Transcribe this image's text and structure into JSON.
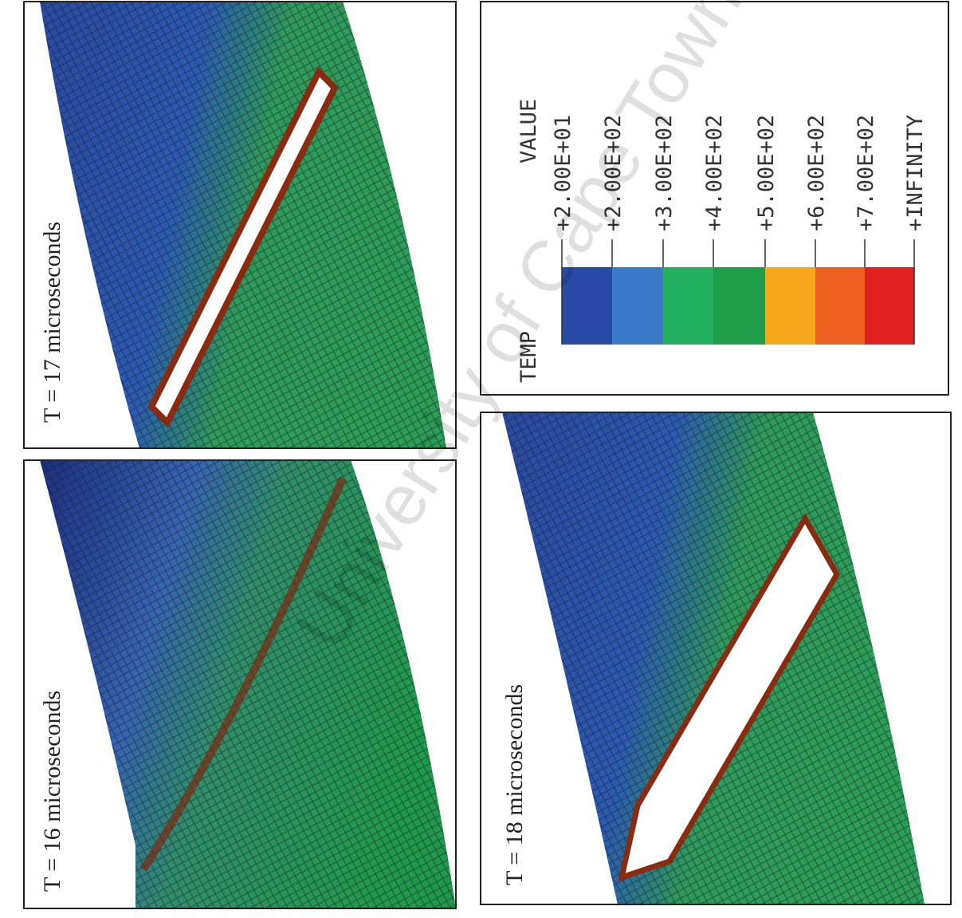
{
  "panels": [
    {
      "label": "T = 17 microseconds"
    },
    {
      "label": "T = 16 microseconds"
    },
    {
      "label": "T = 18 microseconds"
    }
  ],
  "legend": {
    "title": "TEMP",
    "value_header": "VALUE",
    "labels": [
      "+2.00E+01",
      "+2.00E+02",
      "+3.00E+02",
      "+4.00E+02",
      "+5.00E+02",
      "+6.00E+02",
      "+7.00E+02",
      "+INFINITY"
    ]
  },
  "watermark": "University of Cape Town"
}
